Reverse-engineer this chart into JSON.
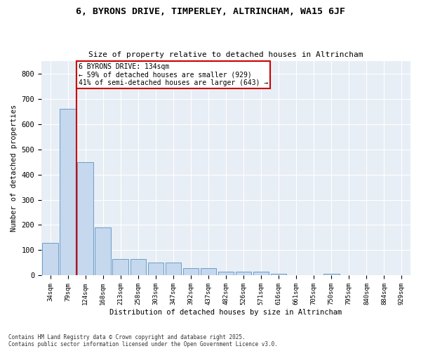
{
  "title_line1": "6, BYRONS DRIVE, TIMPERLEY, ALTRINCHAM, WA15 6JF",
  "title_line2": "Size of property relative to detached houses in Altrincham",
  "xlabel": "Distribution of detached houses by size in Altrincham",
  "ylabel": "Number of detached properties",
  "categories": [
    "34sqm",
    "79sqm",
    "124sqm",
    "168sqm",
    "213sqm",
    "258sqm",
    "303sqm",
    "347sqm",
    "392sqm",
    "437sqm",
    "482sqm",
    "526sqm",
    "571sqm",
    "616sqm",
    "661sqm",
    "705sqm",
    "750sqm",
    "795sqm",
    "840sqm",
    "884sqm",
    "929sqm"
  ],
  "values": [
    130,
    660,
    450,
    190,
    65,
    65,
    50,
    50,
    28,
    28,
    15,
    15,
    15,
    8,
    0,
    0,
    8,
    0,
    0,
    0,
    0
  ],
  "bar_color": "#c5d8ee",
  "bar_edge_color": "#6b9dc8",
  "vline_x": 1.5,
  "vline_color": "#cc0000",
  "annotation_text": "6 BYRONS DRIVE: 134sqm\n← 59% of detached houses are smaller (929)\n41% of semi-detached houses are larger (643) →",
  "annotation_box_color": "#ffffff",
  "annotation_box_edge_color": "#cc0000",
  "ylim": [
    0,
    850
  ],
  "yticks": [
    0,
    100,
    200,
    300,
    400,
    500,
    600,
    700,
    800
  ],
  "background_color": "#e8eef5",
  "grid_color": "#ffffff",
  "fig_background": "#ffffff",
  "footer_line1": "Contains HM Land Registry data © Crown copyright and database right 2025.",
  "footer_line2": "Contains public sector information licensed under the Open Government Licence v3.0."
}
